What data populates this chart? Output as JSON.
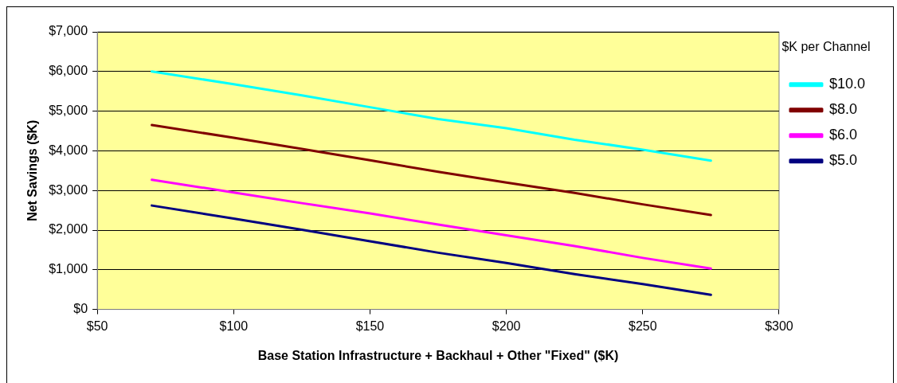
{
  "chart_data": {
    "type": "line",
    "xlabel": "Base Station Infrastructure + Backhaul + Other \"Fixed\" ($K)",
    "ylabel": "Net Savings ($K)",
    "legend_title": "$K per Channel",
    "x": [
      70,
      100,
      125,
      150,
      175,
      200,
      225,
      250,
      275
    ],
    "series": [
      {
        "name": "$10.0",
        "color": "#00ffff",
        "values": [
          6000,
          5680,
          5400,
          5100,
          4800,
          4570,
          4280,
          4030,
          3750
        ]
      },
      {
        "name": "$8.0",
        "color": "#800000",
        "values": [
          4650,
          4330,
          4050,
          3760,
          3470,
          3200,
          2940,
          2650,
          2380
        ]
      },
      {
        "name": "$6.0",
        "color": "#ff00ff",
        "values": [
          3270,
          2950,
          2680,
          2420,
          2140,
          1870,
          1600,
          1300,
          1030
        ]
      },
      {
        "name": "$5.0",
        "color": "#000080",
        "values": [
          2620,
          2290,
          2010,
          1720,
          1430,
          1170,
          890,
          640,
          370
        ]
      }
    ],
    "xlim": [
      50,
      300
    ],
    "xticks": [
      {
        "value": 50,
        "label": "$50"
      },
      {
        "value": 100,
        "label": "$100"
      },
      {
        "value": 150,
        "label": "$150"
      },
      {
        "value": 200,
        "label": "$200"
      },
      {
        "value": 250,
        "label": "$250"
      },
      {
        "value": 300,
        "label": "$300"
      }
    ],
    "ylim": [
      0,
      7000
    ],
    "yticks": [
      {
        "value": 0,
        "label": "$0"
      },
      {
        "value": 1000,
        "label": "$1,000"
      },
      {
        "value": 2000,
        "label": "$2,000"
      },
      {
        "value": 3000,
        "label": "$3,000"
      },
      {
        "value": 4000,
        "label": "$4,000"
      },
      {
        "value": 5000,
        "label": "$5,000"
      },
      {
        "value": 6000,
        "label": "$6,000"
      },
      {
        "value": 7000,
        "label": "$7,000"
      }
    ],
    "grid": "y",
    "legend": "right",
    "marker": "none",
    "line_style": "solid"
  }
}
